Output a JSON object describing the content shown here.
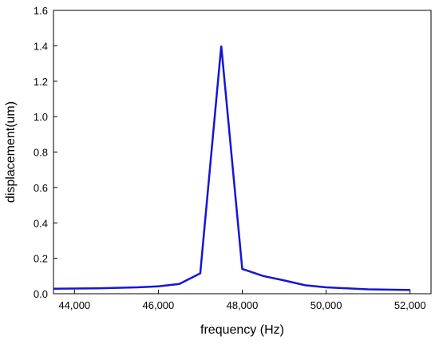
{
  "chart_data": {
    "type": "line",
    "title": "",
    "xlabel": "frequency (Hz)",
    "ylabel": "displacement(um)",
    "xlim": [
      43500,
      52500
    ],
    "ylim": [
      0,
      1.6
    ],
    "x_ticks": [
      44000,
      46000,
      48000,
      50000,
      52000
    ],
    "x_tick_labels": [
      "44,000",
      "46,000",
      "48,000",
      "50,000",
      "52,000"
    ],
    "y_ticks": [
      0,
      0.2,
      0.4,
      0.6,
      0.8,
      1.0,
      1.2,
      1.4,
      1.6
    ],
    "y_tick_labels": [
      "0.0",
      "0.2",
      "0.4",
      "0.6",
      "0.8",
      "1.0",
      "1.2",
      "1.4",
      "1.6"
    ],
    "grid": false,
    "legend": "none",
    "series": [
      {
        "color": "#1515d8",
        "x": [
          43500,
          44500,
          45500,
          46000,
          46500,
          47000,
          47500,
          48000,
          48500,
          49000,
          49500,
          50000,
          50500,
          51000,
          52000
        ],
        "y": [
          0.028,
          0.03,
          0.036,
          0.042,
          0.055,
          0.115,
          1.4,
          0.14,
          0.1,
          0.075,
          0.048,
          0.036,
          0.03,
          0.025,
          0.021
        ]
      }
    ]
  }
}
